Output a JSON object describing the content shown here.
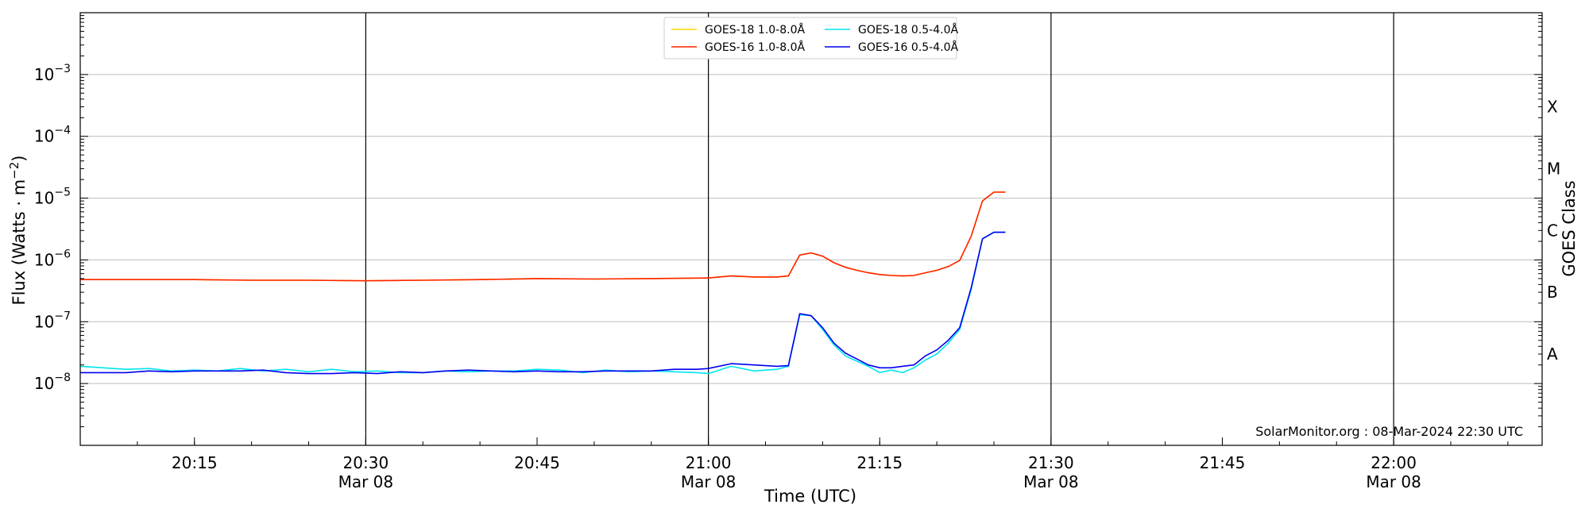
{
  "chart_data": {
    "type": "line",
    "xlabel": "Time (UTC)",
    "ylabel": "Flux (Watts · m⁻²)",
    "y2label": "GOES Class",
    "xlim": [
      "20:05",
      "22:13"
    ],
    "ylim": [
      1e-09,
      0.01
    ],
    "yscale": "log",
    "grid": true,
    "legend_position": "top-center",
    "x_ticks": [
      {
        "time": "20:15",
        "label": "20:15",
        "date": ""
      },
      {
        "time": "20:30",
        "label": "20:30",
        "date": "Mar 08"
      },
      {
        "time": "20:45",
        "label": "20:45",
        "date": ""
      },
      {
        "time": "21:00",
        "label": "21:00",
        "date": "Mar 08"
      },
      {
        "time": "21:15",
        "label": "21:15",
        "date": ""
      },
      {
        "time": "21:30",
        "label": "21:30",
        "date": "Mar 08"
      },
      {
        "time": "21:45",
        "label": "21:45",
        "date": ""
      },
      {
        "time": "22:00",
        "label": "22:00",
        "date": "Mar 08"
      }
    ],
    "vlines": [
      "20:30",
      "21:00",
      "21:30",
      "22:00"
    ],
    "y_ticks": [
      {
        "value": 0.001,
        "label_exp": "−3"
      },
      {
        "value": 0.0001,
        "label_exp": "−4"
      },
      {
        "value": 1e-05,
        "label_exp": "−5"
      },
      {
        "value": 1e-06,
        "label_exp": "−6"
      },
      {
        "value": 1e-07,
        "label_exp": "−7"
      },
      {
        "value": 1e-08,
        "label_exp": "−8"
      }
    ],
    "goes_classes": [
      {
        "label": "X",
        "value": 0.0003
      },
      {
        "label": "M",
        "value": 3e-05
      },
      {
        "label": "C",
        "value": 3e-06
      },
      {
        "label": "B",
        "value": 3e-07
      },
      {
        "label": "A",
        "value": 3e-08
      }
    ],
    "credit": "SolarMonitor.org : 08-Mar-2024 22:30 UTC",
    "series": [
      {
        "name": "GOES-18 1.0-8.0Å",
        "color": "#ffd700",
        "x": [
          "20:05",
          "20:10",
          "20:15",
          "20:20",
          "20:25",
          "20:30",
          "20:35",
          "20:40",
          "20:45",
          "20:50",
          "20:55",
          "21:00",
          "21:02",
          "21:04",
          "21:06",
          "21:07",
          "21:08",
          "21:09",
          "21:10",
          "21:11",
          "21:12",
          "21:13",
          "21:14",
          "21:15",
          "21:16",
          "21:17",
          "21:18",
          "21:19",
          "21:20",
          "21:21",
          "21:22",
          "21:23",
          "21:24",
          "21:25",
          "21:26"
        ],
        "values": [
          4.8e-07,
          4.8e-07,
          4.8e-07,
          4.7e-07,
          4.7e-07,
          4.6e-07,
          4.7e-07,
          4.8e-07,
          5e-07,
          4.9e-07,
          5e-07,
          5.1e-07,
          5.5e-07,
          5.3e-07,
          5.3e-07,
          5.5e-07,
          1.2e-06,
          1.3e-06,
          1.15e-06,
          9e-07,
          7.6e-07,
          6.8e-07,
          6.2e-07,
          5.8e-07,
          5.6e-07,
          5.5e-07,
          5.6e-07,
          6.2e-07,
          6.8e-07,
          7.8e-07,
          9.8e-07,
          2.4e-06,
          9e-06,
          1.25e-05,
          1.25e-05
        ]
      },
      {
        "name": "GOES-16 1.0-8.0Å",
        "color": "#ff2200",
        "x": [
          "20:05",
          "20:10",
          "20:15",
          "20:20",
          "20:25",
          "20:30",
          "20:35",
          "20:40",
          "20:45",
          "20:50",
          "20:55",
          "21:00",
          "21:02",
          "21:04",
          "21:06",
          "21:07",
          "21:08",
          "21:09",
          "21:10",
          "21:11",
          "21:12",
          "21:13",
          "21:14",
          "21:15",
          "21:16",
          "21:17",
          "21:18",
          "21:19",
          "21:20",
          "21:21",
          "21:22",
          "21:23",
          "21:24",
          "21:25",
          "21:26"
        ],
        "values": [
          4.8e-07,
          4.8e-07,
          4.8e-07,
          4.7e-07,
          4.7e-07,
          4.6e-07,
          4.7e-07,
          4.8e-07,
          5e-07,
          4.9e-07,
          5e-07,
          5.1e-07,
          5.5e-07,
          5.3e-07,
          5.3e-07,
          5.5e-07,
          1.2e-06,
          1.3e-06,
          1.15e-06,
          9e-07,
          7.6e-07,
          6.8e-07,
          6.2e-07,
          5.8e-07,
          5.6e-07,
          5.5e-07,
          5.6e-07,
          6.2e-07,
          6.8e-07,
          7.8e-07,
          9.8e-07,
          2.4e-06,
          9e-06,
          1.25e-05,
          1.25e-05
        ]
      },
      {
        "name": "GOES-18 0.5-4.0Å",
        "color": "#00e5ee",
        "x": [
          "20:05",
          "20:07",
          "20:09",
          "20:11",
          "20:13",
          "20:15",
          "20:17",
          "20:19",
          "20:21",
          "20:23",
          "20:25",
          "20:27",
          "20:29",
          "20:31",
          "20:33",
          "20:35",
          "20:37",
          "20:39",
          "20:41",
          "20:43",
          "20:45",
          "20:47",
          "20:49",
          "20:51",
          "20:53",
          "20:55",
          "20:57",
          "20:59",
          "21:00",
          "21:02",
          "21:04",
          "21:06",
          "21:07",
          "21:08",
          "21:09",
          "21:10",
          "21:11",
          "21:12",
          "21:13",
          "21:14",
          "21:15",
          "21:16",
          "21:17",
          "21:18",
          "21:19",
          "21:20",
          "21:21",
          "21:22",
          "21:23",
          "21:24",
          "21:25",
          "21:26"
        ],
        "values": [
          1.9e-08,
          1.8e-08,
          1.7e-08,
          1.75e-08,
          1.6e-08,
          1.65e-08,
          1.6e-08,
          1.75e-08,
          1.6e-08,
          1.7e-08,
          1.55e-08,
          1.7e-08,
          1.55e-08,
          1.6e-08,
          1.5e-08,
          1.5e-08,
          1.6e-08,
          1.55e-08,
          1.6e-08,
          1.6e-08,
          1.7e-08,
          1.65e-08,
          1.5e-08,
          1.65e-08,
          1.55e-08,
          1.6e-08,
          1.55e-08,
          1.5e-08,
          1.45e-08,
          1.9e-08,
          1.6e-08,
          1.7e-08,
          1.9e-08,
          1.3e-07,
          1.25e-07,
          7.5e-08,
          4.2e-08,
          2.8e-08,
          2.3e-08,
          1.9e-08,
          1.5e-08,
          1.65e-08,
          1.5e-08,
          1.8e-08,
          2.4e-08,
          3e-08,
          4.5e-08,
          7.5e-08,
          3.3e-07,
          2.2e-06,
          2.8e-06,
          2.8e-06
        ]
      },
      {
        "name": "GOES-16 0.5-4.0Å",
        "color": "#0000ee",
        "x": [
          "20:05",
          "20:07",
          "20:09",
          "20:11",
          "20:13",
          "20:15",
          "20:17",
          "20:19",
          "20:21",
          "20:23",
          "20:25",
          "20:27",
          "20:29",
          "20:31",
          "20:33",
          "20:35",
          "20:37",
          "20:39",
          "20:41",
          "20:43",
          "20:45",
          "20:47",
          "20:49",
          "20:51",
          "20:53",
          "20:55",
          "20:57",
          "20:59",
          "21:00",
          "21:02",
          "21:04",
          "21:06",
          "21:07",
          "21:08",
          "21:09",
          "21:10",
          "21:11",
          "21:12",
          "21:13",
          "21:14",
          "21:15",
          "21:16",
          "21:17",
          "21:18",
          "21:19",
          "21:20",
          "21:21",
          "21:22",
          "21:23",
          "21:24",
          "21:25",
          "21:26"
        ],
        "values": [
          1.5e-08,
          1.5e-08,
          1.5e-08,
          1.6e-08,
          1.55e-08,
          1.6e-08,
          1.6e-08,
          1.6e-08,
          1.65e-08,
          1.5e-08,
          1.45e-08,
          1.45e-08,
          1.5e-08,
          1.45e-08,
          1.55e-08,
          1.5e-08,
          1.6e-08,
          1.65e-08,
          1.6e-08,
          1.55e-08,
          1.6e-08,
          1.55e-08,
          1.55e-08,
          1.6e-08,
          1.6e-08,
          1.6e-08,
          1.7e-08,
          1.7e-08,
          1.75e-08,
          2.1e-08,
          2e-08,
          1.9e-08,
          1.95e-08,
          1.35e-07,
          1.25e-07,
          8e-08,
          4.5e-08,
          3.1e-08,
          2.5e-08,
          2e-08,
          1.8e-08,
          1.8e-08,
          1.9e-08,
          2e-08,
          2.8e-08,
          3.5e-08,
          5e-08,
          8e-08,
          3.5e-07,
          2.2e-06,
          2.8e-06,
          2.8e-06
        ]
      }
    ]
  }
}
